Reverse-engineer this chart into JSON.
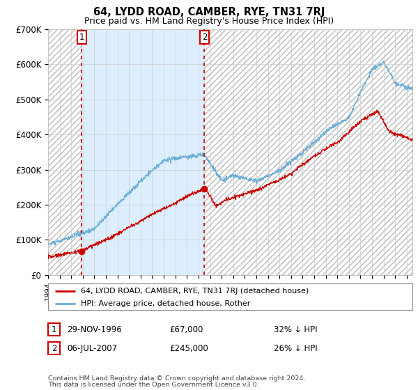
{
  "title": "64, LYDD ROAD, CAMBER, RYE, TN31 7RJ",
  "subtitle": "Price paid vs. HM Land Registry's House Price Index (HPI)",
  "ylim": [
    0,
    700000
  ],
  "yticks": [
    0,
    100000,
    200000,
    300000,
    400000,
    500000,
    600000,
    700000
  ],
  "ytick_labels": [
    "£0",
    "£100K",
    "£200K",
    "£300K",
    "£400K",
    "£500K",
    "£600K",
    "£700K"
  ],
  "sale1_x": 1996.91,
  "sale1_y": 67000,
  "sale2_x": 2007.51,
  "sale2_y": 245000,
  "sale1_note": "29-NOV-1996",
  "sale1_amount": "£67,000",
  "sale1_hpi": "32% ↓ HPI",
  "sale2_note": "06-JUL-2007",
  "sale2_amount": "£245,000",
  "sale2_hpi": "26% ↓ HPI",
  "hpi_color": "#6baed6",
  "price_color": "#cc0000",
  "legend_label1": "64, LYDD ROAD, CAMBER, RYE, TN31 7RJ (detached house)",
  "legend_label2": "HPI: Average price, detached house, Rother",
  "footnote1": "Contains HM Land Registry data © Crown copyright and database right 2024.",
  "footnote2": "This data is licensed under the Open Government Licence v3.0.",
  "bg_color": "#ffffff",
  "hatch_color": "#cccccc",
  "shade_color": "#ddeeff",
  "xlim_left": 1994.0,
  "xlim_right": 2025.5,
  "xstart_hatch": 1994.0,
  "xend_hatch": 1994.75
}
